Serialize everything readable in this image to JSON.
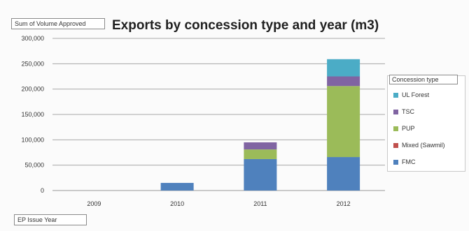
{
  "measure_label": "Sum of Volume Approved",
  "field_label": "EP Issue Year",
  "chart_data": {
    "type": "bar",
    "stacked": true,
    "title": "Exports by concession type and year (m3)",
    "xlabel": "",
    "ylabel": "",
    "categories": [
      "2009",
      "2010",
      "2011",
      "2012"
    ],
    "ylim": [
      0,
      300000
    ],
    "yticks": [
      0,
      50000,
      100000,
      150000,
      200000,
      250000,
      300000
    ],
    "ytick_labels": [
      "0",
      "50,000",
      "100,000",
      "150,000",
      "200,000",
      "250,000",
      "300,000"
    ],
    "grid": true,
    "legend_title": "Concession type",
    "legend_position": "right",
    "series": [
      {
        "name": "FMC",
        "color": "#4f81bd",
        "values": [
          0,
          15000,
          62000,
          66000
        ]
      },
      {
        "name": "Mixed (Sawmil)",
        "color": "#c0504d",
        "values": [
          0,
          0,
          0,
          0
        ]
      },
      {
        "name": "PUP",
        "color": "#9bbb59",
        "values": [
          0,
          0,
          19000,
          140000
        ]
      },
      {
        "name": "TSC",
        "color": "#8064a2",
        "values": [
          0,
          0,
          14000,
          19000
        ]
      },
      {
        "name": "UL Forest",
        "color": "#4bacc6",
        "values": [
          0,
          0,
          0,
          34000
        ]
      }
    ]
  }
}
